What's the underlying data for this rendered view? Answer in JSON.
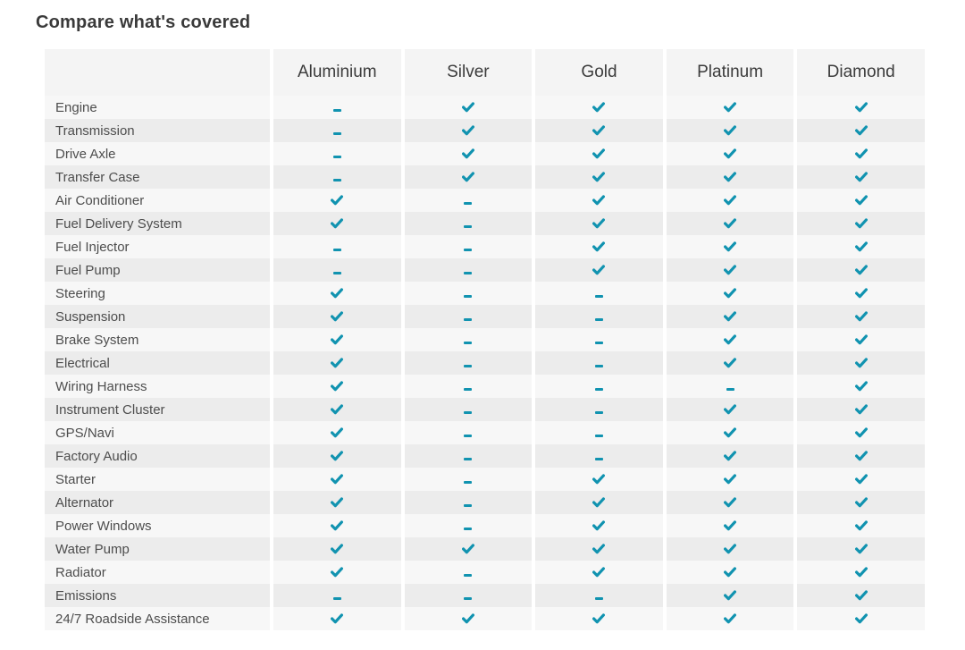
{
  "page": {
    "title": "Compare what's covered"
  },
  "colors": {
    "accent": "#1193b0",
    "stripe_light": "#f7f7f7",
    "stripe_dark": "#ececec",
    "header_bg": "#f4f4f4"
  },
  "icons": {
    "check": "check-icon",
    "dash": "dash-icon"
  },
  "table": {
    "columns": [
      "Aluminium",
      "Silver",
      "Gold",
      "Platinum",
      "Diamond"
    ],
    "rows": [
      {
        "label": "Engine",
        "values": [
          false,
          true,
          true,
          true,
          true
        ]
      },
      {
        "label": "Transmission",
        "values": [
          false,
          true,
          true,
          true,
          true
        ]
      },
      {
        "label": "Drive Axle",
        "values": [
          false,
          true,
          true,
          true,
          true
        ]
      },
      {
        "label": "Transfer Case",
        "values": [
          false,
          true,
          true,
          true,
          true
        ]
      },
      {
        "label": "Air Conditioner",
        "values": [
          true,
          false,
          true,
          true,
          true
        ]
      },
      {
        "label": "Fuel Delivery System",
        "values": [
          true,
          false,
          true,
          true,
          true
        ]
      },
      {
        "label": "Fuel Injector",
        "values": [
          false,
          false,
          true,
          true,
          true
        ]
      },
      {
        "label": "Fuel Pump",
        "values": [
          false,
          false,
          true,
          true,
          true
        ]
      },
      {
        "label": "Steering",
        "values": [
          true,
          false,
          false,
          true,
          true
        ]
      },
      {
        "label": "Suspension",
        "values": [
          true,
          false,
          false,
          true,
          true
        ]
      },
      {
        "label": "Brake System",
        "values": [
          true,
          false,
          false,
          true,
          true
        ]
      },
      {
        "label": "Electrical",
        "values": [
          true,
          false,
          false,
          true,
          true
        ]
      },
      {
        "label": "Wiring Harness",
        "values": [
          true,
          false,
          false,
          false,
          true
        ]
      },
      {
        "label": "Instrument Cluster",
        "values": [
          true,
          false,
          false,
          true,
          true
        ]
      },
      {
        "label": "GPS/Navi",
        "values": [
          true,
          false,
          false,
          true,
          true
        ]
      },
      {
        "label": "Factory Audio",
        "values": [
          true,
          false,
          false,
          true,
          true
        ]
      },
      {
        "label": "Starter",
        "values": [
          true,
          false,
          true,
          true,
          true
        ]
      },
      {
        "label": "Alternator",
        "values": [
          true,
          false,
          true,
          true,
          true
        ]
      },
      {
        "label": "Power Windows",
        "values": [
          true,
          false,
          true,
          true,
          true
        ]
      },
      {
        "label": "Water Pump",
        "values": [
          true,
          true,
          true,
          true,
          true
        ]
      },
      {
        "label": "Radiator",
        "values": [
          true,
          false,
          true,
          true,
          true
        ]
      },
      {
        "label": "Emissions",
        "values": [
          false,
          false,
          false,
          true,
          true
        ]
      },
      {
        "label": "24/7 Roadside Assistance",
        "values": [
          true,
          true,
          true,
          true,
          true
        ]
      }
    ]
  }
}
